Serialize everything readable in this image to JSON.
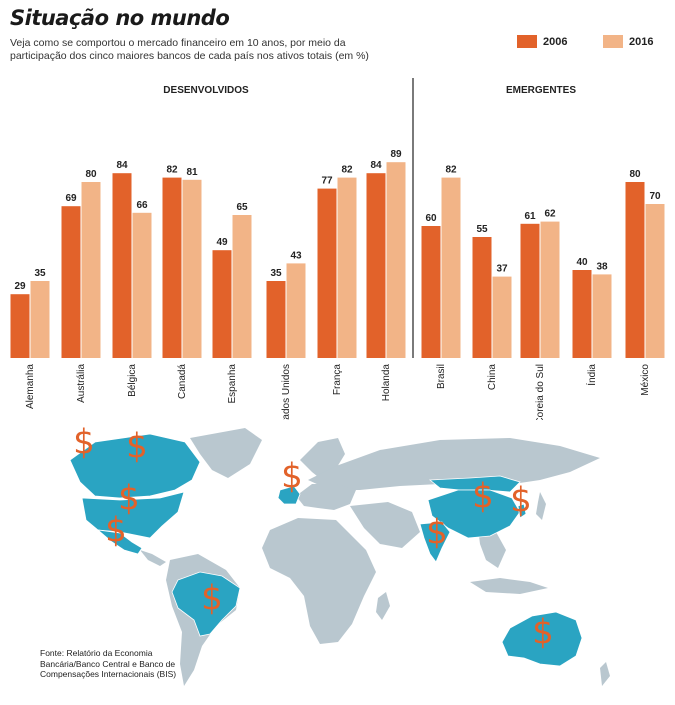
{
  "title": "Situação no mundo",
  "subtitle": "Veja como se comportou o mercado financeiro em 10 anos, por meio da participação dos cinco maiores bancos de cada país nos ativos totais (em %)",
  "source": "Fonte: Relatório da Economia Bancária/Banco Central e Banco de Compensações Internacionais (BIS)",
  "colors": {
    "series_2006": "#e2622a",
    "series_2016": "#f2b487",
    "land_highlight": "#2aa4c2",
    "land_other": "#b9c7cf",
    "dollar": "#e2622a"
  },
  "map": {
    "marker_symbol": "$",
    "marker_count": 10,
    "highlighted_countries": [
      "Canadá",
      "Estados Unidos",
      "México",
      "Brasil",
      "França",
      "Rússia",
      "China",
      "Coreia do Sul",
      "Índia",
      "Austrália"
    ]
  },
  "chart_data": {
    "type": "bar",
    "groups": [
      {
        "label": "DESENVOLVIDOS",
        "categories": [
          "Alemanha",
          "Austrália",
          "Bélgica",
          "Canadá",
          "Espanha",
          "Estados Unidos",
          "França",
          "Holanda"
        ]
      },
      {
        "label": "EMERGENTES",
        "categories": [
          "Brasil",
          "China",
          "Coreia do Sul",
          "Índia",
          "México"
        ]
      }
    ],
    "categories": [
      "Alemanha",
      "Austrália",
      "Bélgica",
      "Canadá",
      "Espanha",
      "Estados Unidos",
      "França",
      "Holanda",
      "Brasil",
      "China",
      "Coreia do Sul",
      "Índia",
      "México"
    ],
    "series": [
      {
        "name": "2006",
        "values": [
          29,
          69,
          84,
          82,
          49,
          35,
          77,
          84,
          60,
          55,
          61,
          40,
          80
        ]
      },
      {
        "name": "2016",
        "values": [
          35,
          80,
          66,
          81,
          65,
          43,
          82,
          89,
          82,
          37,
          62,
          38,
          70
        ]
      }
    ],
    "ylim": [
      0,
      100
    ],
    "grid": false,
    "legend_position": "top-right"
  }
}
